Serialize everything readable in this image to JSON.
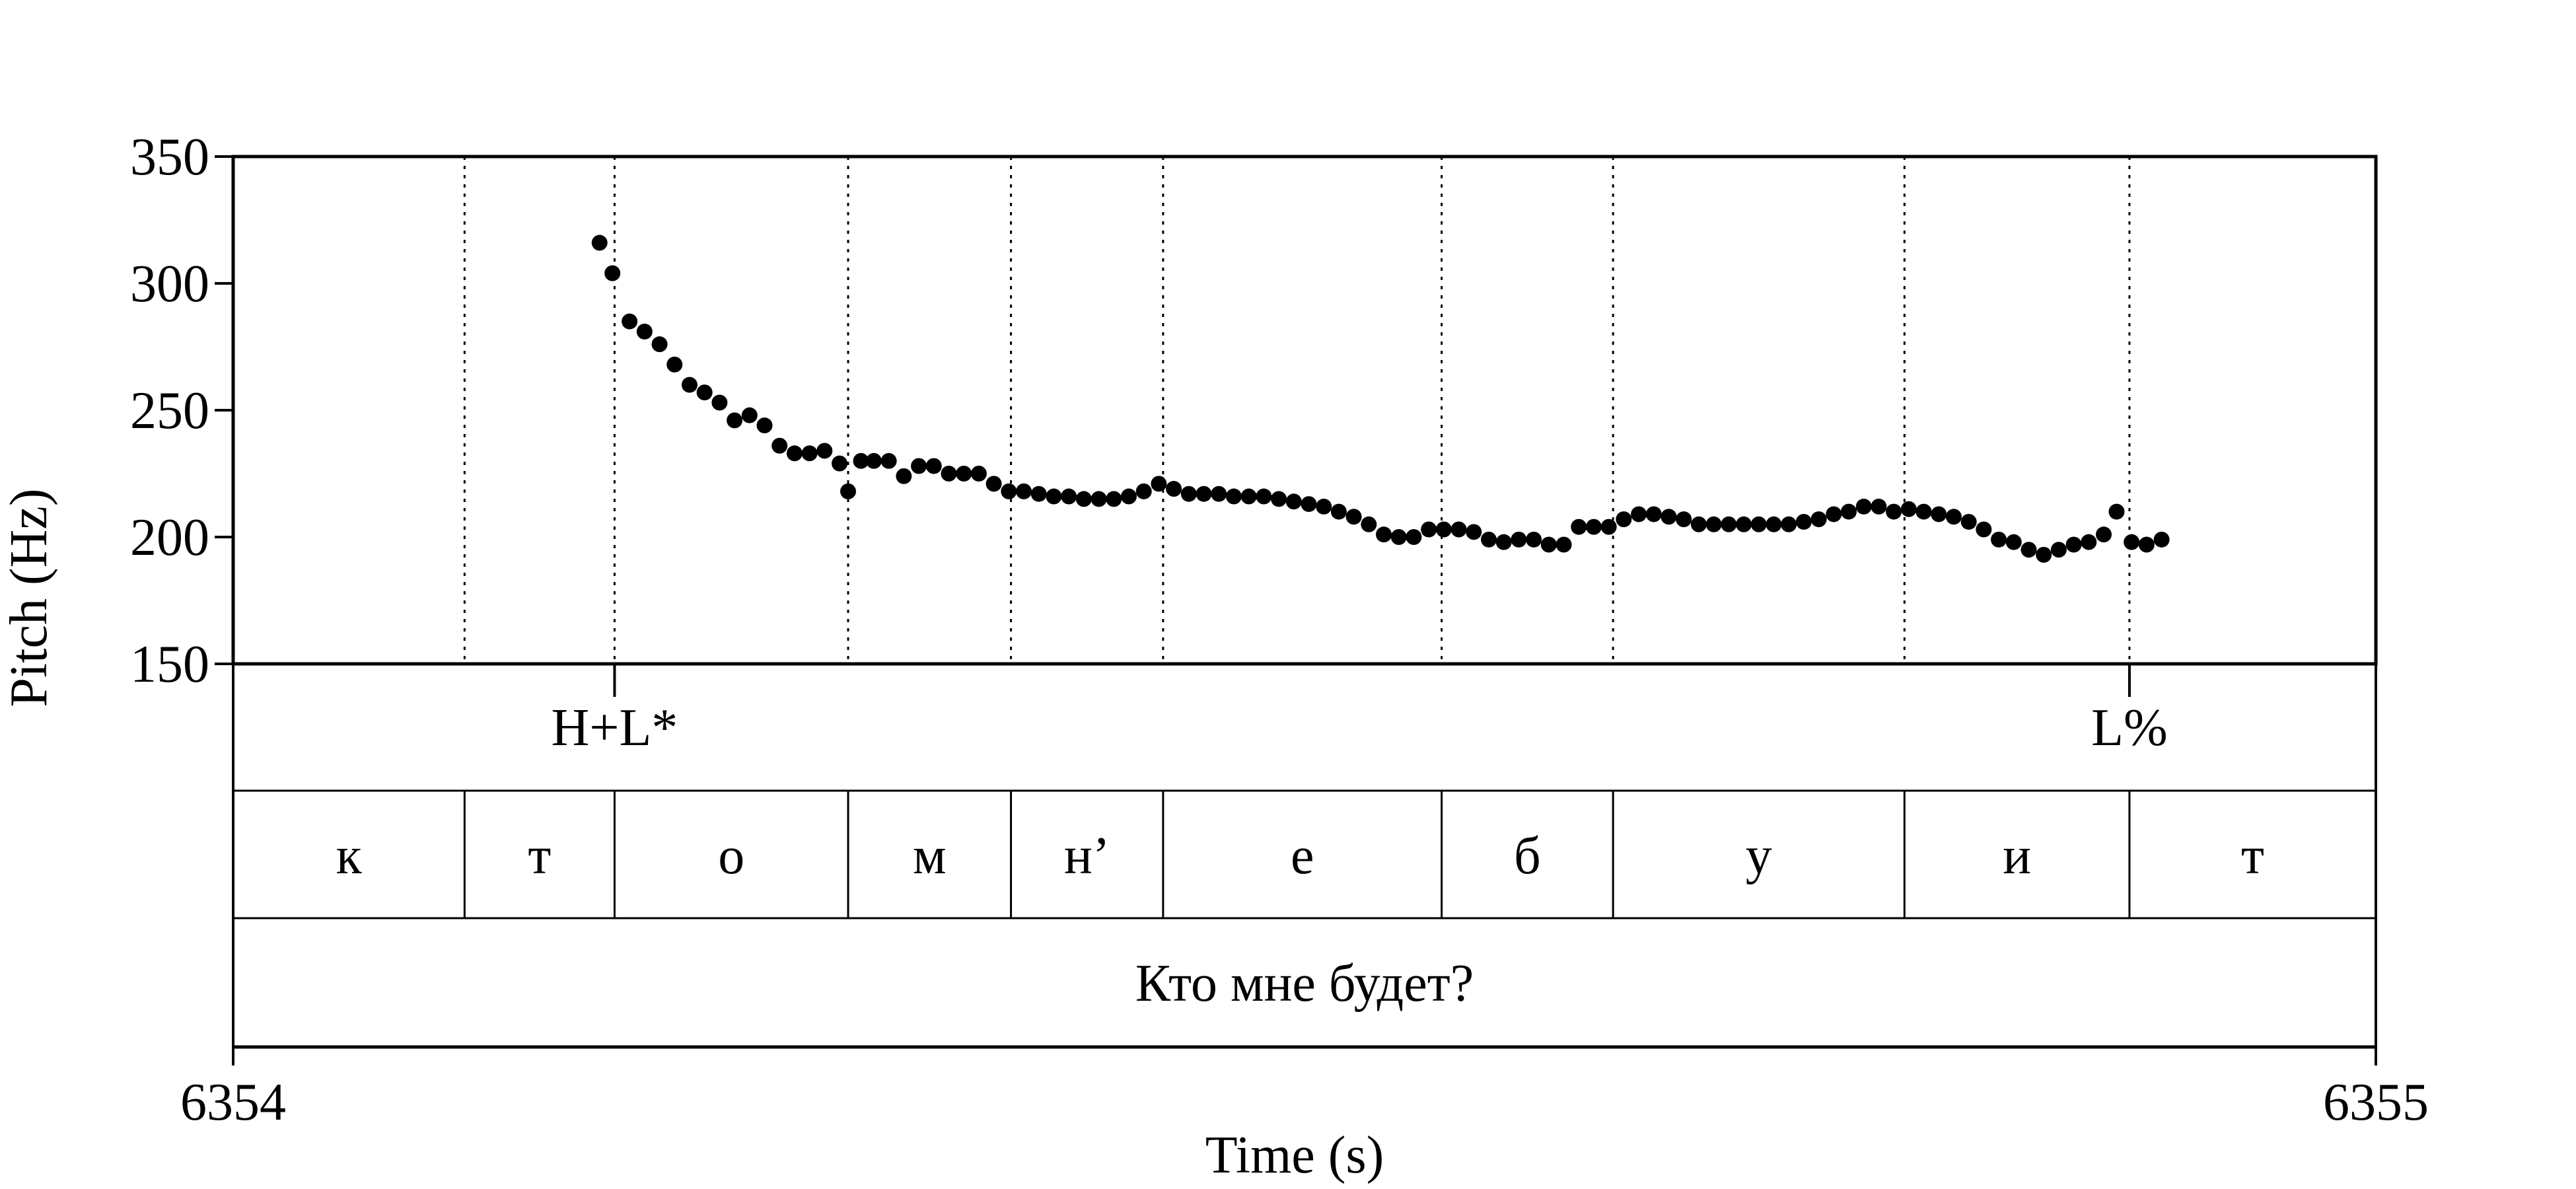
{
  "chart_data": {
    "type": "scatter",
    "xlabel": "Time (s)",
    "ylabel": "Pitch (Hz)",
    "xlim": [
      6354,
      6355
    ],
    "ylim": [
      150,
      350
    ],
    "x_ticks": [
      "6354",
      "6355"
    ],
    "y_ticks": [
      {
        "value": 150,
        "label": "150"
      },
      {
        "value": 200,
        "label": "200"
      },
      {
        "value": 250,
        "label": "250"
      },
      {
        "value": 300,
        "label": "300"
      },
      {
        "value": 350,
        "label": "350"
      }
    ],
    "grid": false,
    "points": [
      [
        6354.171,
        316
      ],
      [
        6354.177,
        304
      ],
      [
        6354.185,
        285
      ],
      [
        6354.192,
        281
      ],
      [
        6354.199,
        276
      ],
      [
        6354.206,
        268
      ],
      [
        6354.213,
        260
      ],
      [
        6354.22,
        257
      ],
      [
        6354.227,
        253
      ],
      [
        6354.234,
        246
      ],
      [
        6354.241,
        248
      ],
      [
        6354.248,
        244
      ],
      [
        6354.255,
        236
      ],
      [
        6354.262,
        233
      ],
      [
        6354.269,
        233
      ],
      [
        6354.276,
        234
      ],
      [
        6354.283,
        229
      ],
      [
        6354.287,
        218
      ],
      [
        6354.293,
        230
      ],
      [
        6354.299,
        230
      ],
      [
        6354.306,
        230
      ],
      [
        6354.313,
        224
      ],
      [
        6354.32,
        228
      ],
      [
        6354.327,
        228
      ],
      [
        6354.334,
        225
      ],
      [
        6354.341,
        225
      ],
      [
        6354.348,
        225
      ],
      [
        6354.355,
        221
      ],
      [
        6354.362,
        218
      ],
      [
        6354.369,
        218
      ],
      [
        6354.376,
        217
      ],
      [
        6354.383,
        216
      ],
      [
        6354.39,
        216
      ],
      [
        6354.397,
        215
      ],
      [
        6354.404,
        215
      ],
      [
        6354.411,
        215
      ],
      [
        6354.418,
        216
      ],
      [
        6354.425,
        218
      ],
      [
        6354.432,
        221
      ],
      [
        6354.439,
        219
      ],
      [
        6354.446,
        217
      ],
      [
        6354.453,
        217
      ],
      [
        6354.46,
        217
      ],
      [
        6354.467,
        216
      ],
      [
        6354.474,
        216
      ],
      [
        6354.481,
        216
      ],
      [
        6354.488,
        215
      ],
      [
        6354.495,
        214
      ],
      [
        6354.502,
        213
      ],
      [
        6354.509,
        212
      ],
      [
        6354.516,
        210
      ],
      [
        6354.523,
        208
      ],
      [
        6354.53,
        205
      ],
      [
        6354.537,
        201
      ],
      [
        6354.544,
        200
      ],
      [
        6354.551,
        200
      ],
      [
        6354.558,
        203
      ],
      [
        6354.565,
        203
      ],
      [
        6354.572,
        203
      ],
      [
        6354.579,
        202
      ],
      [
        6354.586,
        199
      ],
      [
        6354.593,
        198
      ],
      [
        6354.6,
        199
      ],
      [
        6354.607,
        199
      ],
      [
        6354.614,
        197
      ],
      [
        6354.621,
        197
      ],
      [
        6354.628,
        204
      ],
      [
        6354.635,
        204
      ],
      [
        6354.642,
        204
      ],
      [
        6354.649,
        207
      ],
      [
        6354.656,
        209
      ],
      [
        6354.663,
        209
      ],
      [
        6354.67,
        208
      ],
      [
        6354.677,
        207
      ],
      [
        6354.684,
        205
      ],
      [
        6354.691,
        205
      ],
      [
        6354.698,
        205
      ],
      [
        6354.705,
        205
      ],
      [
        6354.712,
        205
      ],
      [
        6354.719,
        205
      ],
      [
        6354.726,
        205
      ],
      [
        6354.733,
        206
      ],
      [
        6354.74,
        207
      ],
      [
        6354.747,
        209
      ],
      [
        6354.754,
        210
      ],
      [
        6354.761,
        212
      ],
      [
        6354.768,
        212
      ],
      [
        6354.775,
        210
      ],
      [
        6354.782,
        211
      ],
      [
        6354.789,
        210
      ],
      [
        6354.796,
        209
      ],
      [
        6354.803,
        208
      ],
      [
        6354.81,
        206
      ],
      [
        6354.817,
        203
      ],
      [
        6354.824,
        199
      ],
      [
        6354.831,
        198
      ],
      [
        6354.838,
        195
      ],
      [
        6354.845,
        193
      ],
      [
        6354.852,
        195
      ],
      [
        6354.859,
        197
      ],
      [
        6354.866,
        198
      ],
      [
        6354.873,
        201
      ],
      [
        6354.879,
        210
      ],
      [
        6354.886,
        198
      ],
      [
        6354.893,
        197
      ],
      [
        6354.9,
        199
      ]
    ],
    "boundaries": [
      6354.108,
      6354.178,
      6354.287,
      6354.363,
      6354.434,
      6354.564,
      6354.644,
      6354.78,
      6354.885
    ],
    "tiers": [
      {
        "name": "tones",
        "labels": [
          {
            "text": "H+L*",
            "x": 6354.178
          },
          {
            "text": "L%",
            "x": 6354.885
          }
        ]
      },
      {
        "name": "segments",
        "intervals": [
          {
            "text": "к",
            "start": 6354.0,
            "end": 6354.108
          },
          {
            "text": "т",
            "start": 6354.108,
            "end": 6354.178
          },
          {
            "text": "о",
            "start": 6354.178,
            "end": 6354.287
          },
          {
            "text": "м",
            "start": 6354.287,
            "end": 6354.363
          },
          {
            "text": "н’",
            "start": 6354.363,
            "end": 6354.434
          },
          {
            "text": "е",
            "start": 6354.434,
            "end": 6354.564
          },
          {
            "text": "б",
            "start": 6354.564,
            "end": 6354.644
          },
          {
            "text": "у",
            "start": 6354.644,
            "end": 6354.78
          },
          {
            "text": "и",
            "start": 6354.78,
            "end": 6354.885
          },
          {
            "text": "т",
            "start": 6354.885,
            "end": 6355.0
          }
        ]
      },
      {
        "name": "sentence",
        "intervals": [
          {
            "text": "Кто мне будет?",
            "start": 6354.0,
            "end": 6355.0
          }
        ]
      }
    ]
  }
}
